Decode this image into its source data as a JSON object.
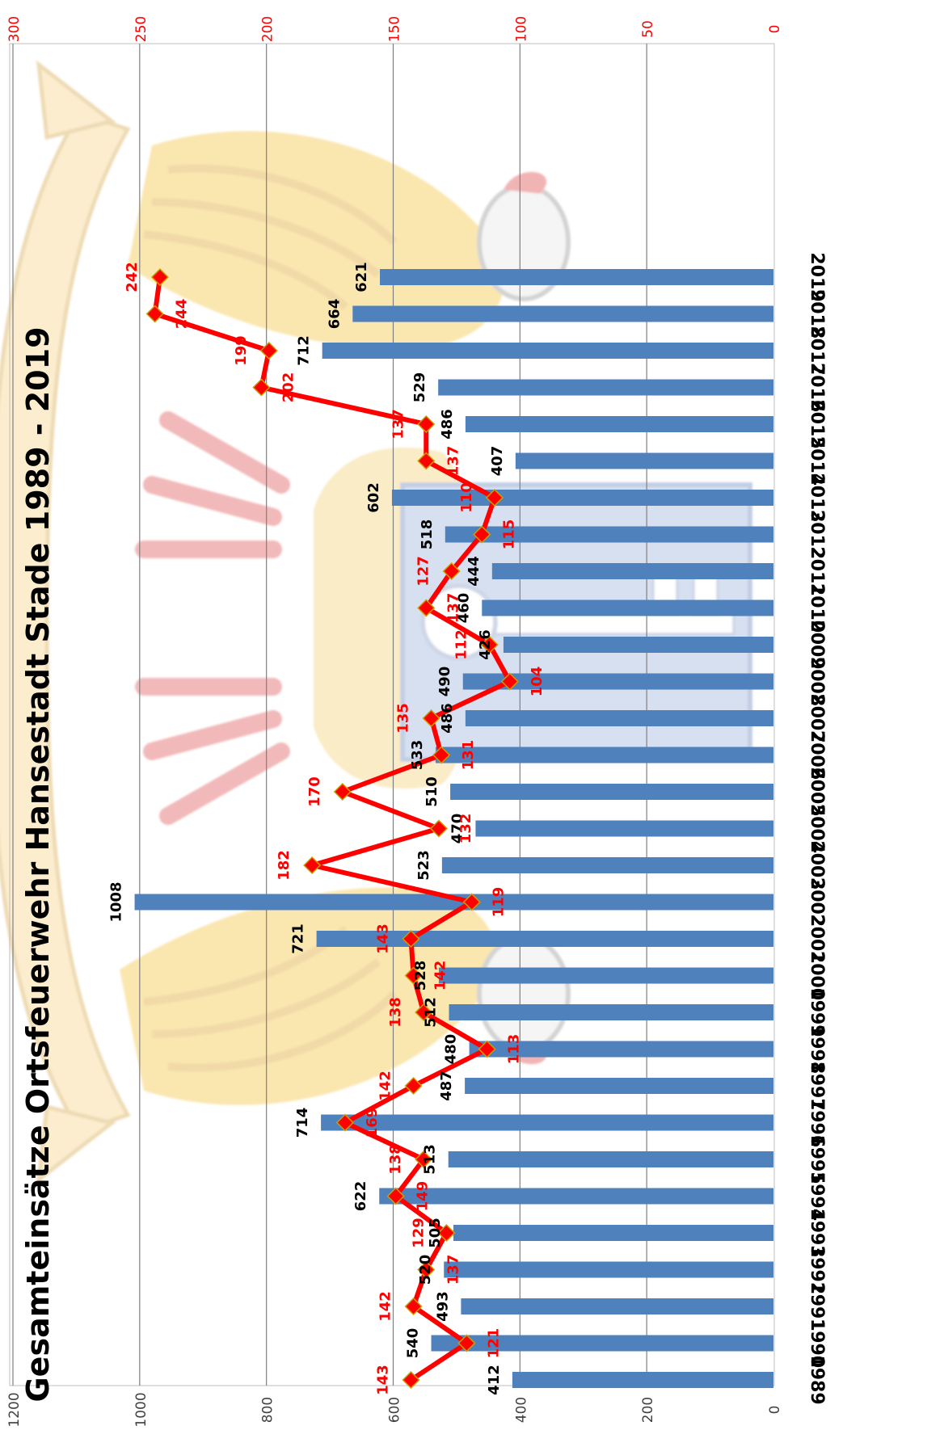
{
  "chart_data": {
    "type": "bar",
    "orientation": "page rotated 90 degrees clockwise",
    "title": "Gesamteinsätze Ortsfeuerwehr Hansestadt Stade 1989 - 2019",
    "categories": [
      "1989",
      "1990",
      "1991",
      "1992",
      "1993",
      "1994",
      "1995",
      "1996",
      "1997",
      "1998",
      "1999",
      "2000",
      "2001",
      "2002",
      "2003",
      "2004",
      "2005",
      "2006",
      "2007",
      "2008",
      "2009",
      "2010",
      "2011",
      "2012",
      "2013",
      "2014",
      "2015",
      "2016",
      "2017",
      "2018",
      "2019"
    ],
    "series": [
      {
        "type": "bar",
        "axis": "primary",
        "color": "#4f81bd",
        "values": [
          412,
          540,
          493,
          520,
          505,
          622,
          513,
          714,
          487,
          480,
          512,
          528,
          721,
          1008,
          523,
          470,
          510,
          533,
          486,
          490,
          426,
          460,
          444,
          518,
          602,
          407,
          486,
          529,
          712,
          664,
          621
        ]
      },
      {
        "type": "line",
        "axis": "secondary",
        "color": "#ff0000",
        "marker": "diamond",
        "values": [
          143,
          121,
          142,
          137,
          129,
          149,
          138,
          169,
          142,
          113,
          138,
          142,
          143,
          119,
          182,
          132,
          170,
          131,
          135,
          104,
          112,
          137,
          127,
          115,
          110,
          137,
          137,
          202,
          199,
          244,
          242
        ]
      }
    ],
    "primary_axis": {
      "min": 0,
      "max": 1200,
      "step": 200,
      "ticks": [
        "0",
        "200",
        "400",
        "600",
        "800",
        "1000",
        "1200"
      ]
    },
    "secondary_axis": {
      "min": 0,
      "max": 300,
      "step": 50,
      "ticks": [
        "0",
        "50",
        "100",
        "150",
        "200",
        "250",
        "300"
      ],
      "color": "#ff0000"
    },
    "gridlines": true,
    "legend": "none",
    "background_image": "city coat of arms watermark (double-headed eagle with key)"
  }
}
